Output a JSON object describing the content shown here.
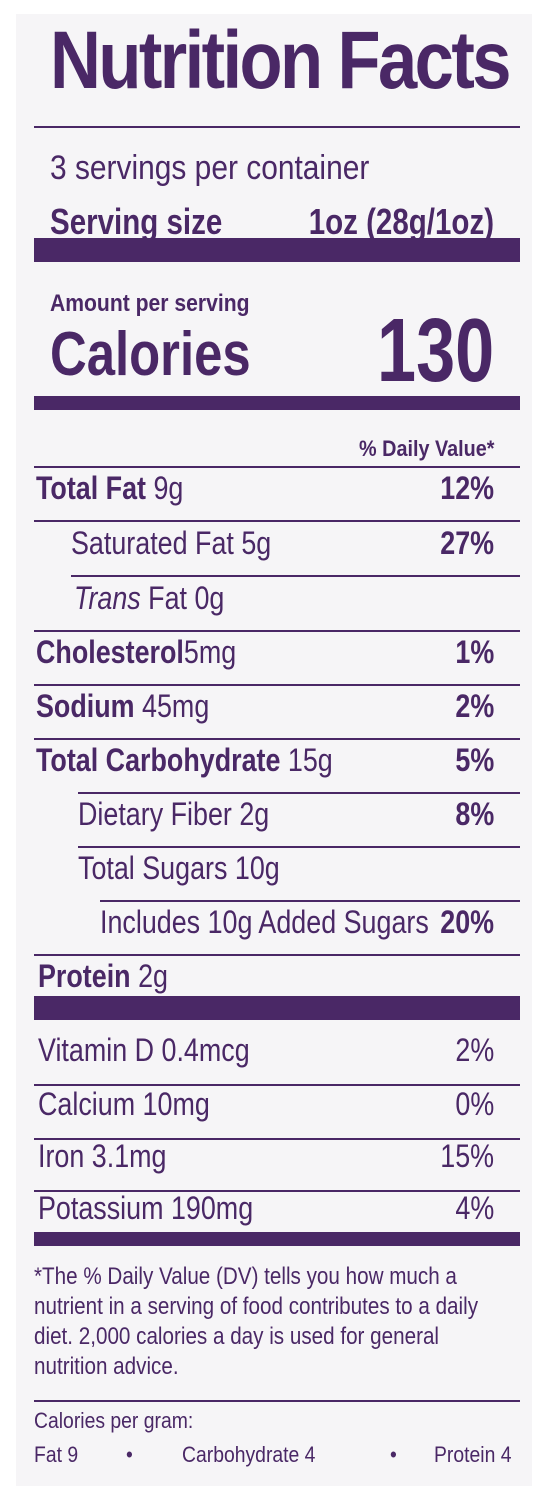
{
  "label": {
    "title": "Nutrition Facts",
    "servings_per_container": "3 servings per container",
    "serving_size_label": "Serving size",
    "serving_size_value": "1oz (28g/1oz)",
    "amount_per_serving": "Amount per serving",
    "calories_label": "Calories",
    "calories_value": "130",
    "daily_value_header": "% Daily Value*"
  },
  "nutrients": [
    {
      "name": "Total Fat",
      "amount": "9g",
      "dv": "12%"
    },
    {
      "name": "Saturated Fat 5g",
      "dv": "27%"
    },
    {
      "italic": "Trans",
      "name": "Fat 0g",
      "dv": ""
    },
    {
      "name": "Cholesterol",
      "amount": "5mg",
      "dv": "1%"
    },
    {
      "name": "Sodium",
      "amount": "45mg",
      "dv": "2%"
    },
    {
      "name": "Total Carbohydrate",
      "amount": "15g",
      "dv": "5%"
    },
    {
      "name": "Dietary Fiber 2g",
      "dv": "8%"
    },
    {
      "name": "Total Sugars 10g",
      "dv": ""
    },
    {
      "name": "Includes 10g Added Sugars",
      "dv": "20%"
    },
    {
      "name": "Protein",
      "amount": "2g",
      "dv": ""
    }
  ],
  "vitamins": [
    {
      "name": "Vitamin D 0.4mcg",
      "dv": "2%"
    },
    {
      "name": "Calcium 10mg",
      "dv": "0%"
    },
    {
      "name": "Iron 3.1mg",
      "dv": "15%"
    },
    {
      "name": "Potassium 190mg",
      "dv": "4%"
    }
  ],
  "footnote": [
    "*The % Daily Value (DV) tells you how much a",
    "nutrient in a serving of food contributes to a daily",
    "diet. 2,000 calories a day is used for general",
    "nutrition advice."
  ],
  "calories_per_gram": {
    "heading": "Calories per gram:",
    "fat": "Fat 9",
    "carbohydrate": "Carbohydrate 4",
    "protein": "Protein 4",
    "separator": "•"
  },
  "colors": {
    "ink": "#4a2866",
    "panel": "#f6f5f7"
  }
}
